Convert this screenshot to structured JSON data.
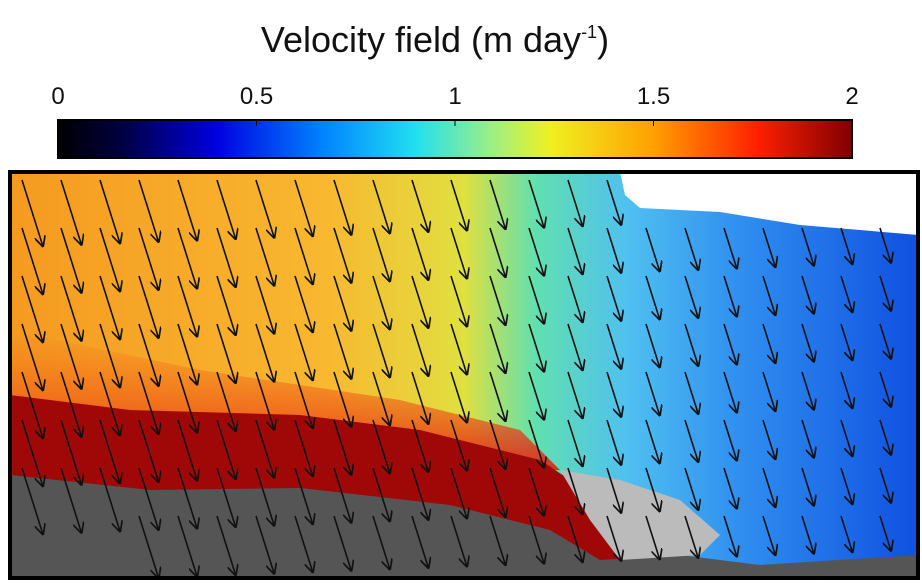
{
  "title": {
    "text": "Velocity field (m  day",
    "superscript": "-1",
    "close": ")"
  },
  "colorbar": {
    "lim": [
      0,
      2
    ],
    "ticks": [
      0,
      0.5,
      1,
      1.5,
      2
    ]
  }
}
